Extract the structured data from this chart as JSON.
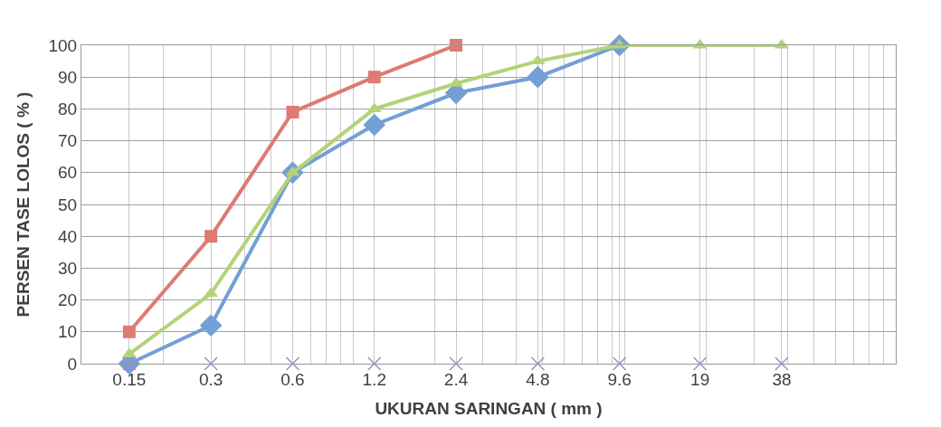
{
  "chart_data": {
    "type": "line",
    "xlabel": "UKURAN SARINGAN ( mm )",
    "ylabel": "PERSEN TASE LOLOS ( % )",
    "log": "x",
    "grid": true,
    "line_style": "solid",
    "xlim": [
      0.1,
      100
    ],
    "ylim": [
      0,
      100
    ],
    "xticks": [
      {
        "value": 0.1,
        "label": null
      },
      {
        "value": 0.15,
        "label": "0.15"
      },
      {
        "value": 0.2,
        "label": null
      },
      {
        "value": 0.3,
        "label": "0.3"
      },
      {
        "value": 0.4,
        "label": null
      },
      {
        "value": 0.5,
        "label": null
      },
      {
        "value": 0.6,
        "label": "0.6"
      },
      {
        "value": 0.7,
        "label": null
      },
      {
        "value": 0.8,
        "label": null
      },
      {
        "value": 0.9,
        "label": null
      },
      {
        "value": 1,
        "label": null
      },
      {
        "value": 1.2,
        "label": "1.2"
      },
      {
        "value": 2,
        "label": null
      },
      {
        "value": 2.4,
        "label": "2.4"
      },
      {
        "value": 3,
        "label": null
      },
      {
        "value": 4,
        "label": null
      },
      {
        "value": 4.8,
        "label": "4.8"
      },
      {
        "value": 5,
        "label": null
      },
      {
        "value": 6,
        "label": null
      },
      {
        "value": 7,
        "label": null
      },
      {
        "value": 8,
        "label": null
      },
      {
        "value": 9,
        "label": null
      },
      {
        "value": 9.6,
        "label": "9.6"
      },
      {
        "value": 10,
        "label": null
      },
      {
        "value": 19,
        "label": "19"
      },
      {
        "value": 20,
        "label": null
      },
      {
        "value": 30,
        "label": null
      },
      {
        "value": 38,
        "label": "38"
      },
      {
        "value": 40,
        "label": null
      },
      {
        "value": 50,
        "label": null
      },
      {
        "value": 60,
        "label": null
      },
      {
        "value": 70,
        "label": null
      },
      {
        "value": 80,
        "label": null
      },
      {
        "value": 90,
        "label": null
      },
      {
        "value": 100,
        "label": null
      }
    ],
    "yticks": [
      0,
      10,
      20,
      30,
      40,
      50,
      60,
      70,
      80,
      90,
      100
    ],
    "series": [
      {
        "color": "#729fd6",
        "marker": "diamond",
        "x": [
          0.15,
          0.3,
          0.6,
          1.2,
          2.4,
          4.8,
          9.6
        ],
        "values": [
          0,
          12,
          60,
          75,
          85,
          90,
          100
        ]
      },
      {
        "color": "#dd7b74",
        "marker": "square",
        "x": [
          0.15,
          0.3,
          0.6,
          1.2,
          2.4
        ],
        "values": [
          10,
          40,
          79,
          90,
          100
        ]
      },
      {
        "color": "#b3d37a",
        "marker": "triangle",
        "x": [
          0.15,
          0.3,
          0.6,
          1.2,
          2.4,
          4.8,
          9.6,
          19,
          38
        ],
        "values": [
          3,
          22,
          60,
          80,
          88,
          95,
          100,
          100,
          100
        ]
      },
      {
        "type": "scatter",
        "color": "#a48bc6",
        "marker": "cross",
        "x": [
          0.15,
          0.3,
          0.6,
          1.2,
          2.4,
          4.8,
          9.6,
          19,
          38
        ],
        "values": [
          0,
          0,
          0,
          0,
          0,
          0,
          0,
          0,
          0
        ]
      }
    ]
  }
}
